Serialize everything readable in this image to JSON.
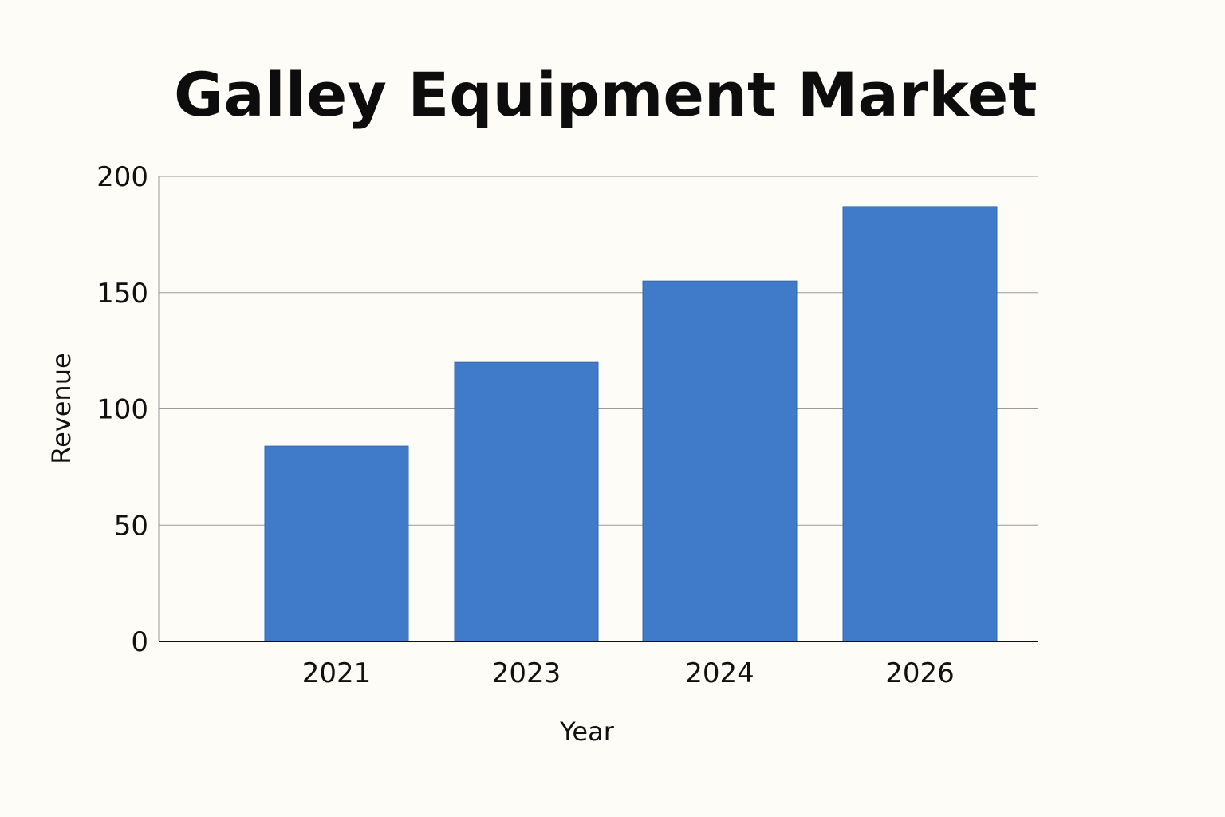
{
  "chart_data": {
    "type": "bar",
    "title": "Galley Equipment Market",
    "xlabel": "Year",
    "ylabel": "Revenue",
    "categories": [
      "2021",
      "2023",
      "2024",
      "2026"
    ],
    "values": [
      84,
      120,
      155,
      187
    ],
    "ylim": [
      0,
      200
    ],
    "yticks": [
      0,
      50,
      100,
      150,
      200
    ],
    "grid": true,
    "legend": "none",
    "colors": {
      "bar": "#3f7bc8",
      "bar_edge": "#2f67b5",
      "grid": "#9a9a9a",
      "axis": "#111111",
      "background": "#fdfcf7"
    }
  }
}
